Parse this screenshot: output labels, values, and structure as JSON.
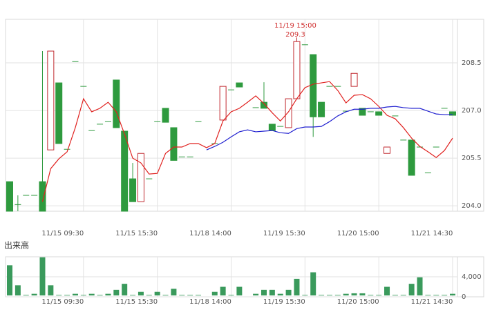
{
  "chart_data": [
    {
      "type": "candlestick",
      "categories": [
        null,
        null,
        null,
        null,
        null,
        null,
        null,
        null,
        null,
        "11/15 09:30",
        null,
        null,
        null,
        null,
        null,
        null,
        null,
        null,
        "11/15 15:30",
        null,
        null,
        null,
        null,
        null,
        null,
        null,
        null,
        "11/18 14:00",
        null,
        null,
        null,
        null,
        null,
        null,
        null,
        null,
        "11/19 15:30",
        null,
        null,
        null,
        null,
        null,
        null,
        null,
        null,
        "11/20 15:00",
        null,
        null,
        null,
        null,
        null,
        null,
        null,
        null,
        "11/21 14:30"
      ],
      "open": [
        204.76,
        204.04,
        204.33,
        204.33,
        204.76,
        205.76,
        207.87,
        205.78,
        208.54,
        207.76,
        206.37,
        206.57,
        206.65,
        207.96,
        206.35,
        204.85,
        204.13,
        204.85,
        206.65,
        207.07,
        206.46,
        205.54,
        205.54,
        206.65,
        null,
        205.96,
        206.7,
        207.65,
        207.87,
        null,
        207.09,
        207.26,
        206.57,
        206.5,
        206.46,
        207.37,
        209.07,
        208.76,
        207.26,
        207.76,
        207.76,
        206.98,
        207.76,
        207.07,
        206.96,
        206.96,
        205.65,
        206.83,
        206.07,
        206.07,
        205.85,
        205.04,
        205.85,
        207.07,
        206.96
      ],
      "high": [
        204.76,
        204.33,
        204.33,
        204.33,
        208.87,
        208.87,
        207.87,
        205.78,
        208.54,
        207.76,
        206.37,
        206.57,
        206.65,
        207.96,
        206.35,
        205.35,
        205.65,
        204.85,
        206.65,
        207.07,
        206.46,
        205.54,
        205.54,
        206.65,
        null,
        205.96,
        207.76,
        207.65,
        207.87,
        null,
        207.09,
        207.89,
        206.57,
        206.5,
        207.37,
        209.3,
        209.07,
        208.76,
        207.26,
        207.76,
        207.76,
        206.98,
        208.17,
        207.07,
        206.96,
        206.96,
        205.85,
        206.83,
        206.07,
        206.07,
        205.85,
        205.04,
        205.85,
        207.07,
        206.96
      ],
      "low": [
        203.83,
        203.83,
        204.33,
        204.33,
        203.83,
        205.76,
        205.96,
        205.78,
        208.54,
        207.76,
        206.37,
        206.57,
        206.65,
        206.46,
        203.83,
        204.13,
        204.13,
        204.85,
        206.65,
        206.63,
        205.43,
        205.54,
        205.54,
        206.65,
        null,
        205.96,
        206.7,
        207.65,
        207.74,
        null,
        207.09,
        207.07,
        206.37,
        206.5,
        206.46,
        207.37,
        209.07,
        206.17,
        206.8,
        207.76,
        207.76,
        206.98,
        207.76,
        206.85,
        206.96,
        206.85,
        205.65,
        206.83,
        206.07,
        204.96,
        205.85,
        205.04,
        205.85,
        207.07,
        206.85
      ],
      "close": [
        203.83,
        204.04,
        204.33,
        204.33,
        203.83,
        208.87,
        205.96,
        205.78,
        208.54,
        207.76,
        206.37,
        206.57,
        206.65,
        206.46,
        203.83,
        204.13,
        205.65,
        204.85,
        206.65,
        206.63,
        205.43,
        205.54,
        205.54,
        206.65,
        null,
        205.96,
        207.76,
        207.65,
        207.74,
        null,
        207.09,
        207.07,
        206.37,
        206.5,
        207.37,
        209.17,
        209.07,
        206.8,
        206.8,
        207.76,
        207.76,
        206.98,
        208.17,
        206.85,
        206.96,
        206.85,
        205.85,
        206.83,
        206.07,
        204.96,
        205.85,
        205.04,
        205.85,
        207.07,
        206.85
      ],
      "up_color": "#c0282e",
      "down_color": "#2e9a3e",
      "series": [
        {
          "color": "#e0201e",
          "values": [
            null,
            null,
            null,
            null,
            204.13,
            205.17,
            205.48,
            205.7,
            206.46,
            207.37,
            206.96,
            207.07,
            207.26,
            206.96,
            206.26,
            205.5,
            205.35,
            205.0,
            205.02,
            205.65,
            205.85,
            205.85,
            205.96,
            205.96,
            205.83,
            205.96,
            206.67,
            206.96,
            207.07,
            207.26,
            207.46,
            207.22,
            206.93,
            206.67,
            206.96,
            207.37,
            207.72,
            207.83,
            207.87,
            207.91,
            207.63,
            207.24,
            207.48,
            207.5,
            207.37,
            207.13,
            206.85,
            206.74,
            206.46,
            206.13,
            205.87,
            205.7,
            205.52,
            205.74,
            206.13
          ]
        },
        {
          "color": "#2020d0",
          "values": [
            null,
            null,
            null,
            null,
            null,
            null,
            null,
            null,
            null,
            null,
            null,
            null,
            null,
            null,
            null,
            null,
            null,
            null,
            null,
            null,
            null,
            null,
            null,
            null,
            205.76,
            205.87,
            206.0,
            206.17,
            206.33,
            206.39,
            206.33,
            206.35,
            206.37,
            206.3,
            206.28,
            206.43,
            206.48,
            206.48,
            206.5,
            206.65,
            206.83,
            206.96,
            207.04,
            207.04,
            207.07,
            207.07,
            207.11,
            207.13,
            207.09,
            207.07,
            207.07,
            206.98,
            206.89,
            206.87,
            206.87
          ]
        }
      ],
      "annotation": {
        "label": "11/19 15:00",
        "value": 209.3,
        "color": "#d03030"
      },
      "ylim": [
        203.83,
        209.87
      ],
      "yticks": [
        {
          "value": 204,
          "label": "204.0"
        },
        205.5,
        {
          "value": 207,
          "label": "207.0"
        },
        208.5
      ],
      "grid": true
    },
    {
      "type": "bar",
      "title": "出来高",
      "categories": [
        null,
        null,
        null,
        null,
        null,
        null,
        null,
        null,
        null,
        "11/15 09:30",
        null,
        null,
        null,
        null,
        null,
        null,
        null,
        null,
        "11/15 15:30",
        null,
        null,
        null,
        null,
        null,
        null,
        null,
        null,
        "11/18 14:00",
        null,
        null,
        null,
        null,
        null,
        null,
        null,
        null,
        "11/19 15:30",
        null,
        null,
        null,
        null,
        null,
        null,
        null,
        null,
        "11/20 15:00",
        null,
        null,
        null,
        null,
        null,
        null,
        null,
        null,
        "11/21 14:30"
      ],
      "values": [
        6300,
        2300,
        400,
        600,
        7900,
        2300,
        400,
        400,
        600,
        400,
        600,
        400,
        600,
        1400,
        2600,
        400,
        1000,
        400,
        1000,
        400,
        1600,
        400,
        400,
        400,
        null,
        1000,
        2000,
        400,
        2000,
        null,
        600,
        1400,
        1400,
        600,
        1400,
        3600,
        400,
        4900,
        400,
        400,
        400,
        600,
        700,
        700,
        400,
        400,
        2000,
        400,
        400,
        2600,
        3900,
        400,
        400,
        400,
        600
      ],
      "color": "#3a9a5c",
      "ylim": [
        0,
        8000
      ],
      "yticks": [
        0,
        {
          "value": 4000,
          "label": "4,000"
        }
      ],
      "grid": true
    }
  ]
}
